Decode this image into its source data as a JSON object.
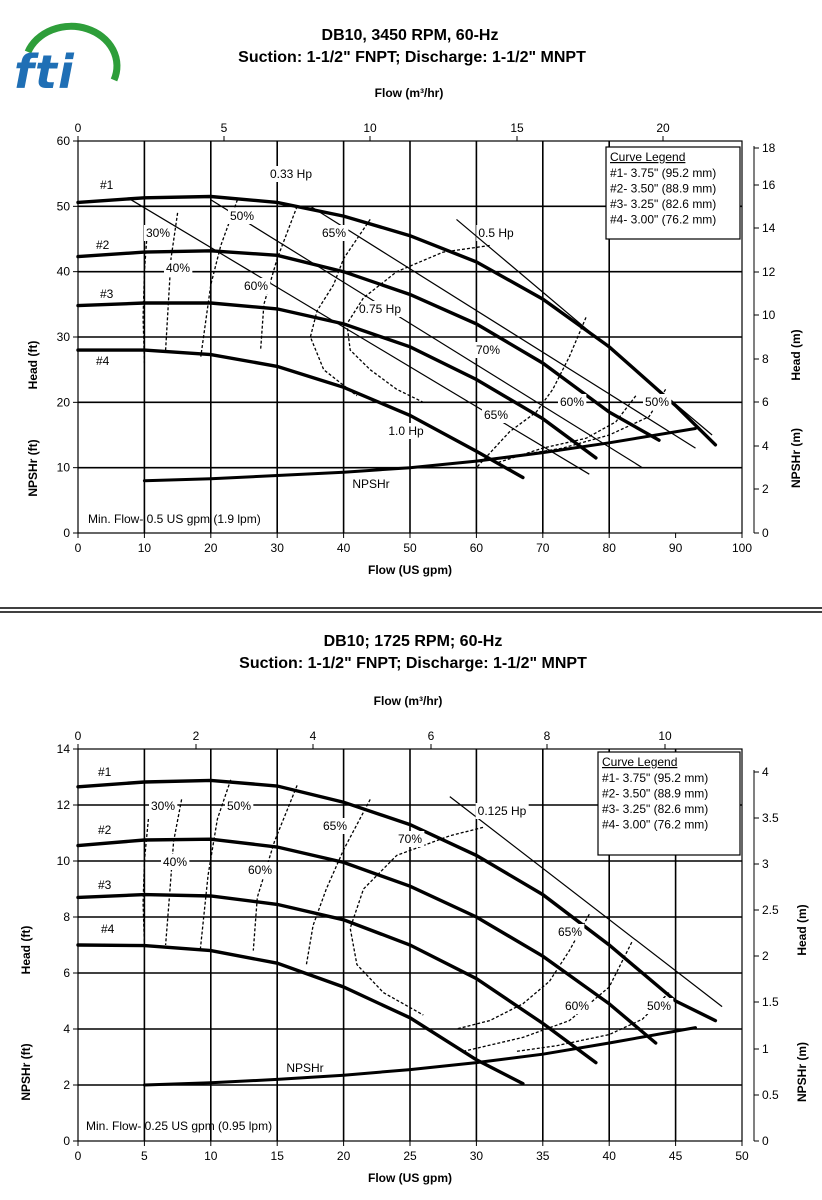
{
  "logo": {
    "text": "fti",
    "ring_color": "#2e9e3a",
    "letter_color": "#1f6fb5"
  },
  "chart_data": [
    {
      "type": "line",
      "title": "DB10, 3450 RPM, 60-Hz",
      "subtitle": "Suction: 1-1/2\" FNPT; Discharge: 1-1/2\" MNPT",
      "xlabel": "Flow (US gpm)",
      "x2label": "Flow (m³/hr)",
      "ylabel": "Head (ft)",
      "ylabel_low": "NPSHr (ft)",
      "y2label": "Head (m)",
      "y2label_low": "NPSHr (m)",
      "xlim": [
        0,
        100
      ],
      "ylim": [
        0,
        60
      ],
      "x_ticks": [
        0,
        10,
        20,
        30,
        40,
        50,
        60,
        70,
        80,
        90,
        100
      ],
      "y_ticks": [
        0,
        10,
        20,
        30,
        40,
        50,
        60
      ],
      "x2_ticks": [
        0,
        5,
        10,
        15,
        20
      ],
      "y2_ticks": [
        0,
        2,
        4,
        6,
        8,
        10,
        12,
        14,
        16,
        18
      ],
      "grid": true,
      "legend_position": "top-right",
      "legend_title": "Curve Legend",
      "legend": [
        "#1- 3.75\" (95.2 mm)",
        "#2- 3.50\" (88.9 mm)",
        "#3- 3.25\" (82.6 mm)",
        "#4- 3.00\" (76.2 mm)"
      ],
      "series": [
        {
          "name": "#1",
          "x": [
            0,
            10,
            20,
            30,
            40,
            50,
            60,
            70,
            80,
            90,
            96
          ],
          "y": [
            50.6,
            51.3,
            51.5,
            50.6,
            48.5,
            45.5,
            41.5,
            35.8,
            28.5,
            19.5,
            13.5
          ]
        },
        {
          "name": "#2",
          "x": [
            0,
            10,
            20,
            30,
            40,
            50,
            60,
            70,
            80,
            87.5
          ],
          "y": [
            42.3,
            43,
            43.2,
            42.5,
            40,
            36.5,
            32,
            26,
            18.5,
            14.2
          ]
        },
        {
          "name": "#3",
          "x": [
            0,
            10,
            20,
            30,
            40,
            50,
            60,
            70,
            78
          ],
          "y": [
            34.8,
            35.2,
            35.2,
            34.3,
            32,
            28.5,
            23.5,
            17.5,
            11.5
          ]
        },
        {
          "name": "#4",
          "x": [
            0,
            10,
            20,
            30,
            40,
            50,
            60,
            67
          ],
          "y": [
            28,
            28,
            27.3,
            25.5,
            22.3,
            18,
            12.5,
            8.5
          ]
        },
        {
          "name": "NPSHr",
          "x": [
            10,
            20,
            30,
            40,
            50,
            60,
            70,
            80,
            93
          ],
          "y": [
            8,
            8.3,
            8.8,
            9.3,
            10,
            11,
            12.3,
            13.8,
            16
          ]
        }
      ],
      "hp_lines": [
        {
          "label": "0.33 Hp",
          "x": [
            8,
            77
          ],
          "y": [
            51,
            9
          ]
        },
        {
          "name": "0.5 Hp",
          "label": "0.5 Hp",
          "x": [
            20,
            85
          ],
          "y": [
            51,
            10
          ]
        },
        {
          "label": "0.75 Hp",
          "x": [
            35,
            93
          ],
          "y": [
            50,
            13
          ]
        },
        {
          "label": "1.0 Hp",
          "x": [
            57,
            95.5
          ],
          "y": [
            48,
            15
          ]
        }
      ],
      "efficiency_curves": [
        {
          "label": "30%",
          "x": [
            10.5,
            10,
            9.8,
            10
          ],
          "y": [
            47,
            40,
            33,
            26
          ]
        },
        {
          "label": "40%",
          "x": [
            15,
            14,
            13.6,
            13.2
          ],
          "y": [
            49,
            42,
            35,
            28
          ]
        },
        {
          "label": "50%",
          "x": [
            24,
            21.5,
            20,
            18.5
          ],
          "y": [
            51,
            44,
            38,
            27
          ]
        },
        {
          "label": "60%",
          "x": [
            33,
            30,
            28,
            27.5
          ],
          "y": [
            50,
            42,
            35,
            28
          ]
        },
        {
          "label": "65%",
          "x": [
            44,
            40,
            38.5,
            36,
            35,
            37,
            42
          ],
          "y": [
            48,
            42,
            38,
            34,
            30,
            25,
            21
          ]
        },
        {
          "label": "70%",
          "x": [
            62,
            55,
            48,
            43,
            40.5,
            41,
            44,
            48,
            52,
            55
          ],
          "y": [
            44,
            43,
            40,
            36,
            32,
            28,
            25,
            22,
            20,
            20
          ]
        },
        {
          "label": "65%",
          "x": [
            76.5,
            74,
            71.5,
            69,
            65,
            60
          ],
          "y": [
            33,
            27,
            22,
            18.5,
            15.5,
            10
          ]
        },
        {
          "label": "60%",
          "x": [
            84,
            81,
            76.5,
            70,
            63
          ],
          "y": [
            21,
            17,
            14.5,
            13,
            10.7
          ]
        },
        {
          "label": "50%",
          "x": [
            88.5,
            86,
            80,
            73,
            67
          ],
          "y": [
            22,
            17.8,
            15,
            13,
            12
          ]
        }
      ],
      "annotations": [
        "0.75 Hp",
        "1.0 Hp",
        "0.5 Hp",
        "0.33 Hp",
        "NPSHr",
        "#1",
        "#2",
        "#3",
        "#4"
      ],
      "note": "Min. Flow- 0.5 US gpm (1.9 lpm)"
    },
    {
      "type": "line",
      "title": "DB10; 1725 RPM; 60-Hz",
      "subtitle": "Suction: 1-1/2\" FNPT; Discharge: 1-1/2\" MNPT",
      "xlabel": "Flow (US gpm)",
      "x2label": "Flow (m³/hr)",
      "ylabel": "Head (ft)",
      "ylabel_low": "NPSHr (ft)",
      "y2label": "Head (m)",
      "y2label_low": "NPSHr (m)",
      "xlim": [
        0,
        50
      ],
      "ylim": [
        0,
        14
      ],
      "x_ticks": [
        0,
        5,
        10,
        15,
        20,
        25,
        30,
        35,
        40,
        45,
        50
      ],
      "y_ticks": [
        0,
        2,
        4,
        6,
        8,
        10,
        12,
        14
      ],
      "x2_ticks": [
        0,
        2,
        4,
        6,
        8,
        10
      ],
      "y2_ticks": [
        0,
        0.5,
        1,
        1.5,
        2,
        2.5,
        3,
        3.5,
        4
      ],
      "grid": true,
      "legend_position": "top-right",
      "legend_title": "Curve Legend",
      "legend": [
        "#1- 3.75\" (95.2 mm)",
        "#2- 3.50\" (88.9 mm)",
        "#3- 3.25\" (82.6 mm)",
        "#4- 3.00\" (76.2 mm)"
      ],
      "series": [
        {
          "name": "#1",
          "x": [
            0,
            5,
            10,
            15,
            20,
            25,
            30,
            35,
            40,
            45,
            48
          ],
          "y": [
            12.65,
            12.82,
            12.88,
            12.68,
            12.1,
            11.3,
            10.2,
            8.8,
            7,
            5,
            4.3
          ]
        },
        {
          "name": "#2",
          "x": [
            0,
            5,
            10,
            15,
            20,
            25,
            30,
            35,
            40,
            43.5
          ],
          "y": [
            10.55,
            10.75,
            10.78,
            10.5,
            9.95,
            9.1,
            8,
            6.6,
            4.9,
            3.5
          ]
        },
        {
          "name": "#3",
          "x": [
            0,
            5,
            10,
            15,
            20,
            25,
            30,
            35,
            39
          ],
          "y": [
            8.7,
            8.8,
            8.75,
            8.45,
            7.9,
            7,
            5.8,
            4.2,
            2.8
          ]
        },
        {
          "name": "#4",
          "x": [
            0,
            5,
            10,
            15,
            20,
            25,
            30,
            33.5
          ],
          "y": [
            7,
            6.98,
            6.8,
            6.35,
            5.5,
            4.4,
            2.9,
            2.05
          ]
        },
        {
          "name": "NPSHr",
          "x": [
            5,
            10,
            15,
            20,
            25,
            30,
            35,
            40,
            46.5
          ],
          "y": [
            2,
            2.08,
            2.2,
            2.35,
            2.55,
            2.8,
            3.1,
            3.5,
            4.05
          ]
        }
      ],
      "hp_lines": [
        {
          "label": "0.125 Hp",
          "x": [
            28,
            48.5
          ],
          "y": [
            12.3,
            4.8
          ]
        }
      ],
      "efficiency_curves": [
        {
          "label": "30%",
          "x": [
            5.3,
            5.0,
            4.9,
            5.0
          ],
          "y": [
            11.5,
            10,
            8.5,
            7
          ]
        },
        {
          "label": "40%",
          "x": [
            7.8,
            7.2,
            6.9,
            6.6
          ],
          "y": [
            12.2,
            10.7,
            8.8,
            7
          ]
        },
        {
          "label": "50%",
          "x": [
            11.5,
            10.5,
            9.8,
            9.2
          ],
          "y": [
            12.9,
            11.5,
            9.5,
            6.8
          ]
        },
        {
          "label": "60%",
          "x": [
            16.5,
            14.8,
            13.5,
            13.2
          ],
          "y": [
            12.7,
            10.7,
            8.7,
            6.8
          ]
        },
        {
          "label": "65%",
          "x": [
            22,
            20,
            18.7,
            17.7,
            17.2
          ],
          "y": [
            12.2,
            10.4,
            9,
            7.7,
            6.3
          ]
        },
        {
          "label": "70%",
          "x": [
            30.5,
            28,
            24,
            21.5,
            20.5,
            21,
            23,
            26
          ],
          "y": [
            11.2,
            10.9,
            10.2,
            9,
            7.6,
            6.3,
            5.3,
            4.5
          ]
        },
        {
          "label": "65%",
          "x": [
            38.5,
            37,
            35.5,
            33.5,
            31,
            28.5
          ],
          "y": [
            8.1,
            6.8,
            5.7,
            4.9,
            4.3,
            4
          ]
        },
        {
          "label": "60%",
          "x": [
            41.7,
            40,
            37,
            33.5,
            29
          ],
          "y": [
            7.1,
            5.5,
            4.3,
            3.7,
            3.2
          ]
        },
        {
          "label": "50%",
          "x": [
            44.5,
            42.5,
            40,
            36,
            33
          ],
          "y": [
            5.3,
            4.35,
            3.8,
            3.4,
            3.2
          ]
        }
      ],
      "annotations": [
        "0.125 Hp",
        "NPSHr",
        "#1",
        "#2",
        "#3",
        "#4"
      ],
      "note": "Min. Flow- 0.25 US gpm (0.95 lpm)"
    }
  ]
}
